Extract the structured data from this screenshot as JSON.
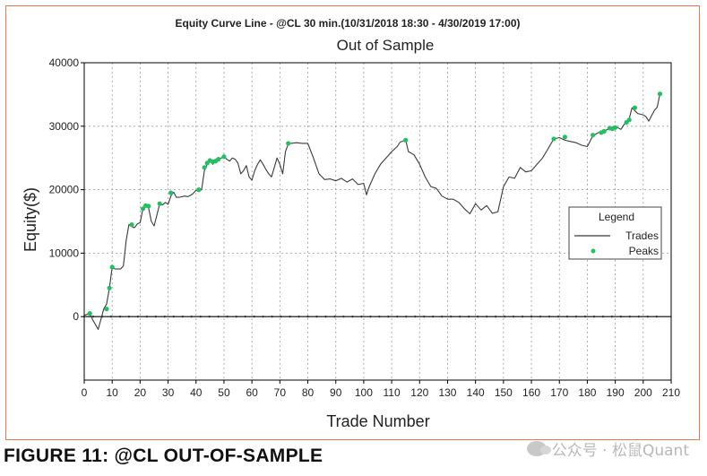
{
  "chart_data": {
    "type": "line",
    "title": "Equity Curve Line - @CL 30 min.(10/31/2018 18:30 - 4/30/2019 17:00)",
    "subtitle": "Out of Sample",
    "xlabel": "Trade Number",
    "ylabel": "Equity($)",
    "xlim": [
      0,
      210
    ],
    "ylim": [
      -10000,
      40000
    ],
    "xticks": [
      0,
      10,
      20,
      30,
      40,
      50,
      60,
      70,
      80,
      90,
      100,
      110,
      120,
      130,
      140,
      150,
      160,
      170,
      180,
      190,
      200,
      210
    ],
    "yticks": [
      0,
      10000,
      20000,
      30000,
      40000
    ],
    "grid": true,
    "legend": {
      "title": "Legend",
      "placement": "right",
      "entries": [
        "Trades",
        "Peaks"
      ]
    },
    "colors": {
      "trades": "#3a3a3a",
      "peaks": "#22c060",
      "axis": "#000000",
      "grid": "#9a9a9a"
    },
    "series": [
      {
        "name": "Trades",
        "x": [
          0,
          2,
          3,
          5,
          7,
          8,
          9,
          10,
          11,
          13,
          14,
          15,
          16,
          17,
          18,
          19,
          20,
          21,
          22,
          23,
          24,
          25,
          26,
          27,
          28,
          29,
          30,
          31,
          32,
          33,
          34,
          35,
          36,
          37,
          38,
          39,
          40,
          41,
          42,
          43,
          44,
          45,
          46,
          47,
          48,
          49,
          50,
          51,
          52,
          53,
          54,
          55,
          56,
          57,
          58,
          59,
          60,
          61,
          62,
          63,
          64,
          65,
          66,
          67,
          68,
          69,
          70,
          71,
          72,
          73,
          74,
          76,
          78,
          80,
          82,
          84,
          86,
          88,
          90,
          92,
          94,
          96,
          98,
          100,
          101,
          102,
          104,
          106,
          108,
          110,
          112,
          113,
          115,
          116,
          118,
          120,
          122,
          124,
          126,
          128,
          130,
          132,
          134,
          136,
          138,
          140,
          142,
          144,
          146,
          148,
          150,
          152,
          154,
          156,
          158,
          160,
          162,
          164,
          166,
          168,
          170,
          172,
          174,
          176,
          178,
          180,
          182,
          184,
          186,
          188,
          190,
          192,
          194,
          195,
          196,
          198,
          200,
          201,
          202,
          204,
          205,
          206
        ],
        "y": [
          200,
          500,
          -500,
          -2000,
          1200,
          2000,
          4500,
          7800,
          7500,
          7500,
          8000,
          12000,
          14500,
          14200,
          14000,
          14600,
          14800,
          17000,
          17500,
          17200,
          15000,
          14300,
          16000,
          17800,
          17600,
          18000,
          17700,
          19000,
          19600,
          18800,
          18800,
          18900,
          19000,
          18900,
          19100,
          19400,
          19900,
          19700,
          20000,
          23000,
          24000,
          24600,
          24000,
          24500,
          24800,
          25000,
          25200,
          24800,
          24500,
          25000,
          24800,
          24200,
          22500,
          23000,
          23800,
          22000,
          21500,
          23000,
          24000,
          24700,
          24000,
          23200,
          22500,
          22000,
          23500,
          25000,
          24000,
          22500,
          26000,
          27200,
          27300,
          27400,
          27300,
          27300,
          25000,
          22500,
          21600,
          21700,
          21400,
          21800,
          21200,
          21700,
          20800,
          21000,
          19200,
          20500,
          22500,
          24000,
          25000,
          26000,
          26800,
          27500,
          27800,
          26000,
          25500,
          24000,
          22000,
          20500,
          20200,
          19000,
          18500,
          18500,
          18000,
          17000,
          16200,
          17800,
          16800,
          17500,
          16300,
          16500,
          20500,
          22000,
          21800,
          23500,
          22800,
          23000,
          24000,
          25000,
          26500,
          28000,
          28200,
          27800,
          27600,
          27400,
          27000,
          26800,
          28500,
          29000,
          29200,
          29700,
          30000,
          29500,
          30800,
          31200,
          32900,
          32000,
          31800,
          31500,
          30800,
          32500,
          33000,
          35100
        ]
      },
      {
        "name": "Peaks",
        "x": [
          2,
          8,
          9,
          10,
          17,
          21,
          22,
          23,
          27,
          31,
          41,
          43,
          44,
          45,
          46,
          47,
          48,
          50,
          73,
          115,
          168,
          172,
          182,
          185,
          186,
          188,
          189,
          190,
          194,
          195,
          197,
          206
        ],
        "y": [
          500,
          1200,
          4500,
          7800,
          14500,
          17000,
          17500,
          17400,
          17800,
          19500,
          20000,
          23500,
          24200,
          24600,
          24400,
          24500,
          24800,
          25200,
          27300,
          27800,
          28000,
          28300,
          28600,
          29000,
          29200,
          29700,
          29600,
          29800,
          30600,
          31000,
          32900,
          35100
        ]
      }
    ]
  },
  "caption": "FIGURE 11: @CL OUT-OF-SAMPLE",
  "watermark": "公众号 · 松鼠Quant"
}
